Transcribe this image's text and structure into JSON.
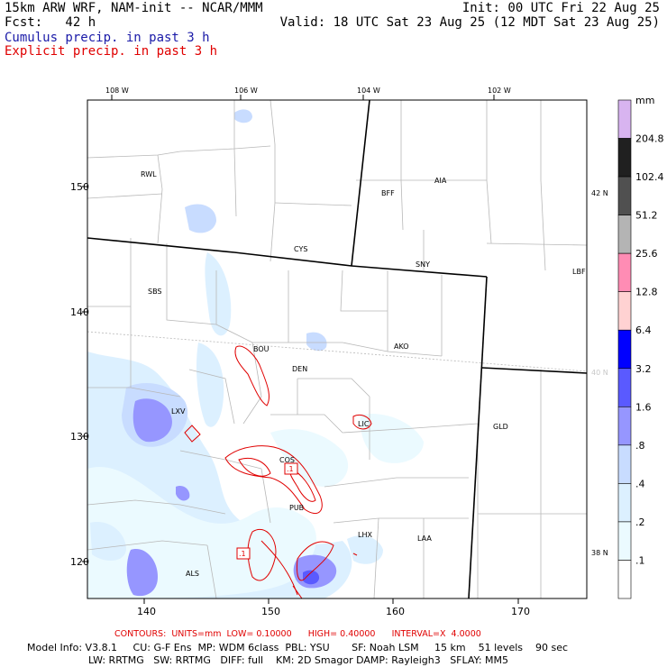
{
  "header": {
    "line1_left": "15km ARW WRF, NAM-init -- NCAR/MMM",
    "line1_right": "Init: 00 UTC Fri 22 Aug 25",
    "line2_left": "Fcst:   42 h",
    "line2_right": "Valid: 18 UTC Sat 23 Aug 25 (12 MDT Sat 23 Aug 25)",
    "line3": "Cumulus precip. in past 3 h",
    "line4": "Explicit precip. in past 3 h",
    "line3_color": "#1a1aa8",
    "line4_color": "#e00000"
  },
  "map": {
    "lon_labels": [
      "108 W",
      "106 W",
      "104 W",
      "102 W"
    ],
    "lat_labels_right": [
      "42 N",
      "40 N",
      "38 N"
    ],
    "grid_y_labels": [
      "150",
      "140",
      "130",
      "120"
    ],
    "grid_x_labels": [
      "140",
      "150",
      "160",
      "170"
    ],
    "stations": [
      "RWL",
      "BFF",
      "AIA",
      "CYS",
      "SNY",
      "LBF",
      "SBS",
      "BOU",
      "DEN",
      "AKO",
      "LXV",
      "LIC",
      "GLD",
      "COS",
      "PUB",
      "LHX",
      "LAA",
      "ALS"
    ],
    "contour_labels": [
      ".1",
      ".1",
      ".1"
    ]
  },
  "colorbar": {
    "unit": "mm",
    "levels": [
      "204.8",
      "102.4",
      "51.2",
      "25.6",
      "12.8",
      "6.4",
      "3.2",
      "1.6",
      ".8",
      ".4",
      ".2",
      ".1"
    ],
    "colors": [
      "#d8b4f0",
      "#202020",
      "#505050",
      "#b4b4b4",
      "#ff8cb4",
      "#ffd2d2",
      "#0000ff",
      "#5a5aff",
      "#9696ff",
      "#c8dcff",
      "#dcf0ff",
      "#ebfaff",
      "#ffffff"
    ]
  },
  "footer": {
    "contours": "CONTOURS:  UNITS=mm  LOW= 0.10000      HIGH= 0.40000      INTERVAL=X  4.0000",
    "model_line1": "Model Info: V3.8.1     CU: G-F Ens  MP: WDM 6class  PBL: YSU       SF: Noah LSM     15 km    51 levels    90 sec",
    "model_line2": "LW: RRTMG   SW: RRTMG   DIFF: full    KM: 2D Smagor DAMP: Rayleigh3   SFLAY: MM5",
    "contours_color": "#e00000"
  }
}
